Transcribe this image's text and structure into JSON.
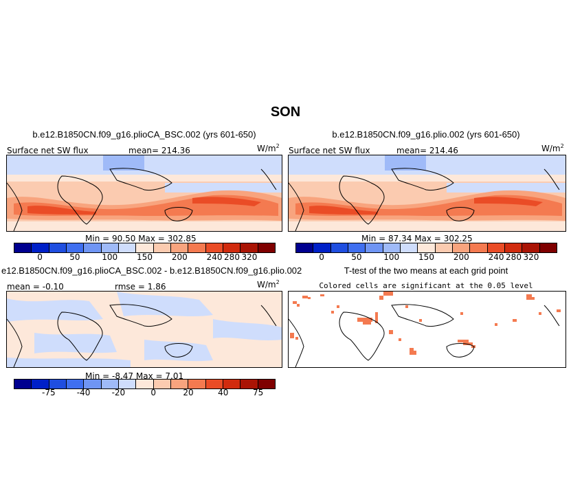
{
  "chart_data": [
    {
      "type": "heatmap",
      "title": "b.e12.B1850CN.f09_g16.plioCA_BSC.002 (yrs 601-650)",
      "variable": "Surface net SW flux",
      "mean_label": "mean=",
      "mean": "214.36",
      "units": "W/m",
      "units_exp": "2",
      "min_label": "Min =",
      "min": "90.50",
      "max_label": "Max =",
      "max": "302.85",
      "colorbar_colors": [
        "#00008f",
        "#0020c8",
        "#1f4ee0",
        "#3f6ff0",
        "#6f95f4",
        "#9fbaf8",
        "#cfddfc",
        "#fde8da",
        "#fbcbb0",
        "#f8a47e",
        "#f47a50",
        "#ea4c26",
        "#d12b0e",
        "#aa1405",
        "#7f0000"
      ],
      "colorbar_ticks": [
        "0",
        "50",
        "100",
        "150",
        "200",
        "240",
        "280",
        "320"
      ]
    },
    {
      "type": "heatmap",
      "title": "b.e12.B1850CN.f09_g16.plio.002 (yrs 601-650)",
      "variable": "Surface net SW flux",
      "mean_label": "mean=",
      "mean": "214.46",
      "units": "W/m",
      "units_exp": "2",
      "min_label": "Min =",
      "min": "87.34",
      "max_label": "Max =",
      "max": "302.25",
      "colorbar_ticks": [
        "0",
        "50",
        "100",
        "150",
        "200",
        "240",
        "280",
        "320"
      ]
    },
    {
      "type": "heatmap",
      "title": "e12.B1850CN.f09_g16.plioCA_BSC.002 - b.e12.B1850CN.f09_g16.plio.002",
      "mean_label": "mean =",
      "mean": "-0.10",
      "rmse_label": "rmse =",
      "rmse": "1.86",
      "units": "W/m",
      "units_exp": "2",
      "min_label": "Min =",
      "min": "-8.47",
      "max_label": "Max =",
      "max": "7.01",
      "colorbar_ticks": [
        "-75",
        "-40",
        "-20",
        "0",
        "20",
        "40",
        "75"
      ]
    },
    {
      "type": "heatmap",
      "title": "T-test of the two means at each grid point",
      "subtitle": "Colored cells are significant at the 0.05 level"
    }
  ],
  "page": {
    "title": "SON"
  }
}
